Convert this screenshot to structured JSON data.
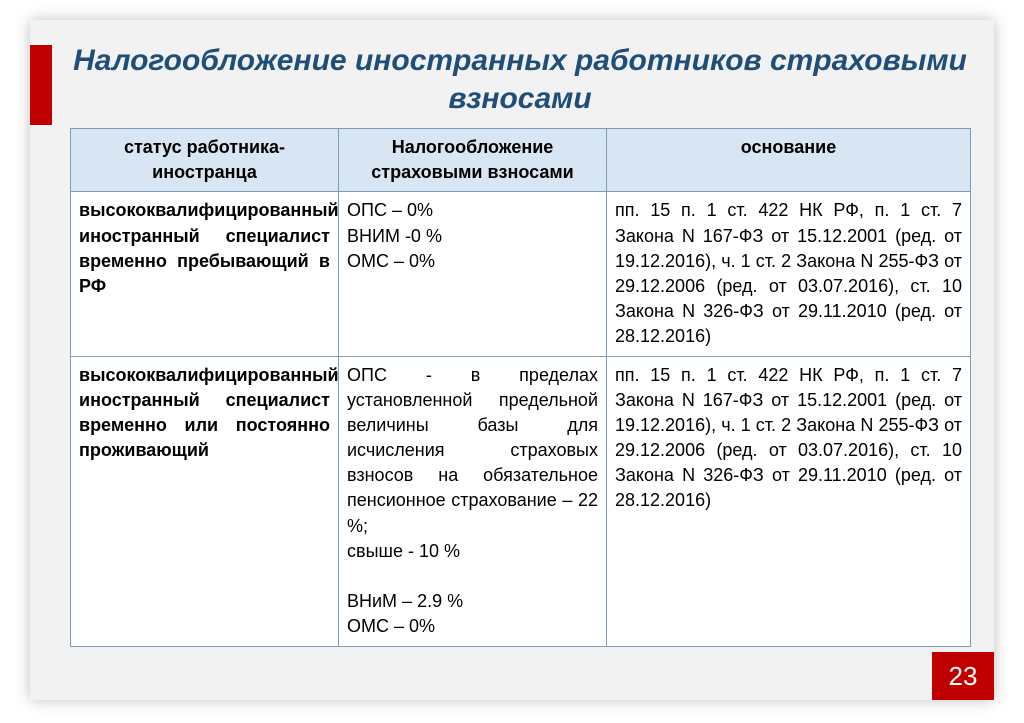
{
  "title": "Налогообложение иностранных работников страховыми взносами",
  "accent_color": "#c00000",
  "title_color": "#1f4e79",
  "header_bg": "#d8e6f3",
  "border_color": "#7f9db9",
  "columns": {
    "status": "статус работника-иностранца",
    "tax": "Налогообложение страховыми взносами",
    "basis": "основание"
  },
  "rows": [
    {
      "status": "высококвалифицированный иностранный специалист временно пребывающий в РФ",
      "tax": "ОПС – 0%\nВНИМ -0 %\nОМС – 0%",
      "basis": "пп. 15 п. 1 ст. 422 НК РФ, п. 1 ст. 7 Закона N 167-ФЗ от 15.12.2001 (ред. от 19.12.2016), ч. 1 ст. 2 Закона N 255-ФЗ  от 29.12.2006 (ред. от 03.07.2016), ст. 10 Закона N 326-ФЗ  от 29.11.2010 (ред. от 28.12.2016)"
    },
    {
      "status": "высококвалифицированный иностранный специалист временно или постоянно проживающий",
      "tax": "ОПС - в пределах установленной предельной величины базы для исчисления страховых взносов на обязательное пенсионное страхование – 22 %;\n свыше - 10 %\n\nВНиМ – 2.9 %\nОМС – 0%",
      "basis": "пп. 15 п. 1 ст. 422 НК РФ, п. 1 ст. 7 Закона N 167-ФЗ от 15.12.2001 (ред. от 19.12.2016), ч. 1 ст. 2 Закона N 255-ФЗ от 29.12.2006 (ред. от 03.07.2016), ст. 10 Закона N 326-ФЗ от 29.11.2010 (ред. от 28.12.2016)"
    }
  ],
  "page_number": "23"
}
